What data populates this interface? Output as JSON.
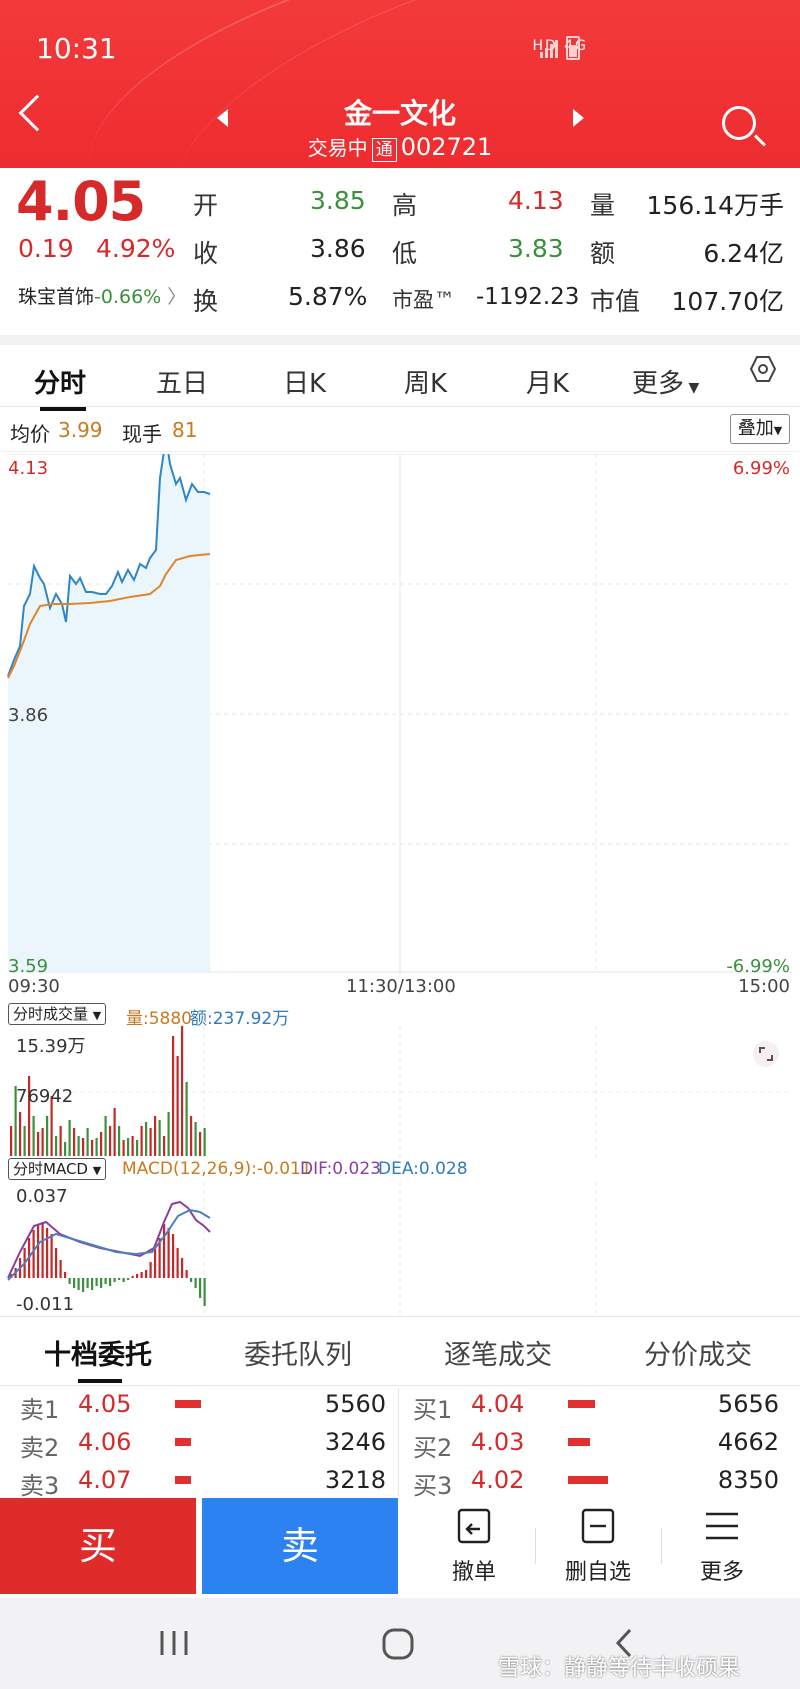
{
  "status_bar": {
    "time": "10:31",
    "indicators": "HD 4G"
  },
  "header": {
    "stock_name": "金一文化",
    "trade_status": "交易中",
    "tong_badge": "通",
    "stock_code": "002721"
  },
  "quote": {
    "price": "4.05",
    "change": "0.19",
    "change_pct": "4.92%",
    "sector": "珠宝首饰",
    "sector_change": "-0.66%",
    "open_label": "开",
    "open": "3.85",
    "close_label": "收",
    "close": "3.86",
    "turnover_label": "换",
    "turnover": "5.87%",
    "high_label": "高",
    "high": "4.13",
    "low_label": "低",
    "low": "3.83",
    "pe_label": "市盈™",
    "pe": "-1192.23",
    "volume_label": "量",
    "volume": "156.14万手",
    "amount_label": "额",
    "amount": "6.24亿",
    "mcap_label": "市值",
    "mcap": "107.70亿"
  },
  "period_tabs": [
    "分时",
    "五日",
    "日K",
    "周K",
    "月K",
    "更多"
  ],
  "info_row": {
    "avg_label": "均价",
    "avg": "3.99",
    "cur_label": "现手",
    "cur": "81",
    "overlay": "叠加"
  },
  "price_chart": {
    "y_top": "4.13",
    "y_mid": "3.86",
    "y_bottom": "3.59",
    "pct_top": "6.99%",
    "pct_bottom": "-6.99%",
    "t_start": "09:30",
    "t_mid": "11:30/13:00",
    "t_end": "15:00"
  },
  "volume_chart": {
    "selector": "分时成交量",
    "vol_text": "量:5880",
    "amt_text": "额:237.92万",
    "y_top": "15.39万",
    "y_mid": "76942"
  },
  "macd_chart": {
    "selector": "分时MACD",
    "macd_text": "MACD(12,26,9):-0.011",
    "dif_text": "DIF:0.023",
    "dea_text": "DEA:0.028",
    "y_top": "0.037",
    "y_bottom": "-0.011"
  },
  "book_tabs": [
    "十档委托",
    "委托队列",
    "逐笔成交",
    "分价成交"
  ],
  "order_book": {
    "sell": [
      {
        "label": "卖1",
        "price": "4.05",
        "qty": "5560",
        "bar": 0.66
      },
      {
        "label": "卖2",
        "price": "4.06",
        "qty": "3246",
        "bar": 0.39
      },
      {
        "label": "卖3",
        "price": "4.07",
        "qty": "3218",
        "bar": 0.39
      }
    ],
    "buy": [
      {
        "label": "买1",
        "price": "4.04",
        "qty": "5656",
        "bar": 0.68
      },
      {
        "label": "买2",
        "price": "4.03",
        "qty": "4662",
        "bar": 0.56
      },
      {
        "label": "买3",
        "price": "4.02",
        "qty": "8350",
        "bar": 1.0
      }
    ]
  },
  "actions": {
    "buy": "买",
    "sell": "卖",
    "cancel": "撤单",
    "remove_watch": "删自选",
    "more": "更多"
  },
  "watermark": "雪球：静静等待丰收硕果",
  "colors": {
    "up": "#d62a2a",
    "down": "#3c8f3c",
    "header": "#ee2c30",
    "sell_button": "#2b82f0",
    "price_line": "#2f86c6",
    "avg_line": "#e0862a"
  }
}
